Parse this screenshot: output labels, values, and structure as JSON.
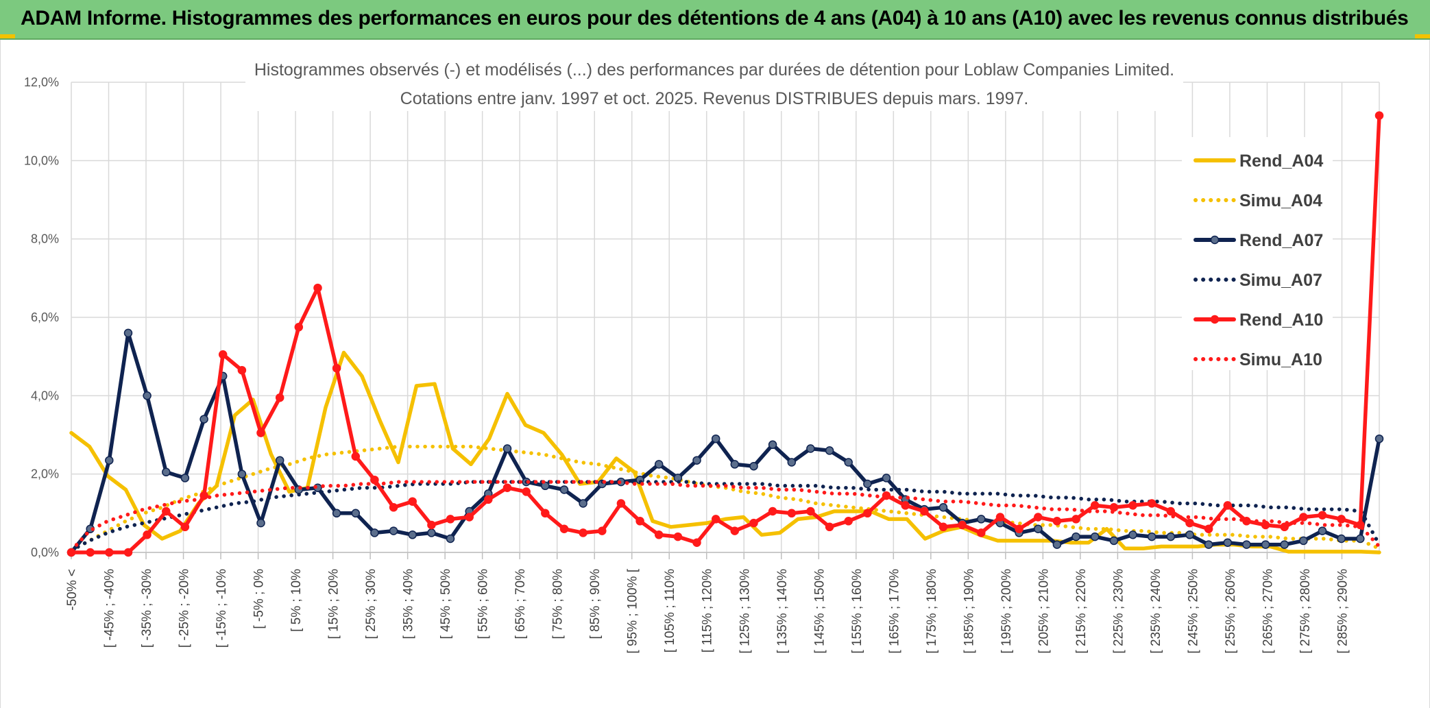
{
  "header": {
    "title": "ADAM Informe. Histogrammes des performances en euros pour des détentions de 4 ans (A04) à 10 ans (A10) avec les revenus connus distribués"
  },
  "chart_data": {
    "type": "line",
    "title": "Histogrammes observés (-) et modélisés (...) des performances par durées de détention pour Loblaw Companies Limited.",
    "subtitle": "Cotations entre janv. 1997 et oct. 2025. Revenus DISTRIBUES depuis mars. 1997.",
    "xlabel": "",
    "ylabel": "",
    "ylim": [
      0,
      12
    ],
    "y_ticks": [
      "0,0%",
      "2,0%",
      "4,0%",
      "6,0%",
      "8,0%",
      "10,0%",
      "12,0%"
    ],
    "grid": true,
    "legend_position": "right",
    "x_tick_labels": [
      "-50% <",
      "[ -45% ; -40%",
      "[ -35% ; -30%",
      "[ -25% ; -20%",
      "[ -15% ; -10%",
      "[ -5% ; 0%",
      "[ 5% ; 10%",
      "[ 15% ; 20%",
      "[ 25% ; 30%",
      "[ 35% ; 40%",
      "[ 45% ; 50%",
      "[ 55% ; 60%",
      "[ 65% ; 70%",
      "[ 75% ; 80%",
      "[ 85% ; 90%",
      "[ 95% ; 100% [",
      "[ 105% ; 110%",
      "[ 115% ; 120%",
      "[ 125% ; 130%",
      "[ 135% ; 140%",
      "[ 145% ; 150%",
      "[ 155% ; 160%",
      "[ 165% ; 170%",
      "[ 175% ; 180%",
      "[ 185% ; 190%",
      "[ 195% ; 200%",
      "[ 205% ; 210%",
      "[ 215% ; 220%",
      "[ 225% ; 230%",
      "[ 235% ; 240%",
      "[ 245% ; 250%",
      "[ 255% ; 260%",
      "[ 265% ; 270%",
      "[ 275% ; 280%",
      "[ 285% ; 290%"
    ],
    "series": [
      {
        "name": "Rend_A04",
        "style": "solid",
        "markers": false,
        "color": "#f5c000",
        "values": [
          3.05,
          2.7,
          1.95,
          1.6,
          0.7,
          0.35,
          0.55,
          1.25,
          1.7,
          3.5,
          3.9,
          2.5,
          1.55,
          1.65,
          3.7,
          5.1,
          4.5,
          3.35,
          2.3,
          4.25,
          4.3,
          2.65,
          2.25,
          2.9,
          4.05,
          3.25,
          3.05,
          2.5,
          1.75,
          1.8,
          2.4,
          2.05,
          0.8,
          0.65,
          0.7,
          0.75,
          0.85,
          0.9,
          0.45,
          0.5,
          0.85,
          0.9,
          1.05,
          1.05,
          1.05,
          0.85,
          0.85,
          0.35,
          0.55,
          0.65,
          0.45,
          0.3,
          0.3,
          0.3,
          0.3,
          0.25,
          0.25,
          0.6,
          0.1,
          0.1,
          0.15,
          0.15,
          0.15,
          0.2,
          0.2,
          0.15,
          0.15,
          0.02,
          0.02,
          0.02,
          0.02,
          0.02,
          0.0
        ]
      },
      {
        "name": "Simu_A04",
        "style": "dotted",
        "color": "#f5c000",
        "values": [
          0.05,
          0.3,
          0.55,
          0.8,
          1.0,
          1.15,
          1.35,
          1.5,
          1.7,
          1.85,
          2.0,
          2.15,
          2.25,
          2.4,
          2.5,
          2.55,
          2.6,
          2.65,
          2.7,
          2.7,
          2.7,
          2.7,
          2.7,
          2.65,
          2.6,
          2.55,
          2.5,
          2.4,
          2.3,
          2.25,
          2.15,
          2.05,
          1.95,
          1.9,
          1.8,
          1.7,
          1.65,
          1.55,
          1.5,
          1.4,
          1.35,
          1.25,
          1.2,
          1.15,
          1.1,
          1.05,
          1.0,
          0.95,
          0.9,
          0.85,
          0.8,
          0.8,
          0.75,
          0.7,
          0.7,
          0.65,
          0.6,
          0.6,
          0.55,
          0.55,
          0.5,
          0.5,
          0.45,
          0.45,
          0.45,
          0.4,
          0.4,
          0.35,
          0.35,
          0.35,
          0.3,
          0.3,
          0.1
        ]
      },
      {
        "name": "Rend_A07",
        "style": "solid",
        "markers": true,
        "color": "#0f2350",
        "values": [
          0.0,
          0.6,
          2.35,
          5.6,
          4.0,
          2.05,
          1.9,
          3.4,
          4.5,
          2.0,
          0.75,
          2.35,
          1.6,
          1.65,
          1.0,
          1.0,
          0.5,
          0.55,
          0.45,
          0.5,
          0.35,
          1.05,
          1.5,
          2.65,
          1.8,
          1.7,
          1.6,
          1.25,
          1.75,
          1.8,
          1.85,
          2.25,
          1.9,
          2.35,
          2.9,
          2.25,
          2.2,
          2.75,
          2.3,
          2.65,
          2.6,
          2.3,
          1.75,
          1.9,
          1.35,
          1.1,
          1.15,
          0.75,
          0.85,
          0.75,
          0.5,
          0.6,
          0.2,
          0.4,
          0.4,
          0.3,
          0.45,
          0.4,
          0.4,
          0.45,
          0.2,
          0.25,
          0.2,
          0.2,
          0.2,
          0.3,
          0.55,
          0.35,
          0.35,
          2.9
        ]
      },
      {
        "name": "Simu_A07",
        "style": "dotted",
        "color": "#0f2350",
        "values": [
          0.05,
          0.3,
          0.5,
          0.65,
          0.75,
          0.85,
          0.95,
          1.05,
          1.15,
          1.25,
          1.3,
          1.4,
          1.45,
          1.5,
          1.55,
          1.6,
          1.65,
          1.65,
          1.7,
          1.75,
          1.75,
          1.75,
          1.8,
          1.8,
          1.8,
          1.8,
          1.8,
          1.8,
          1.8,
          1.8,
          1.8,
          1.8,
          1.8,
          1.8,
          1.8,
          1.75,
          1.75,
          1.75,
          1.75,
          1.7,
          1.7,
          1.7,
          1.65,
          1.65,
          1.6,
          1.6,
          1.6,
          1.55,
          1.55,
          1.5,
          1.5,
          1.5,
          1.45,
          1.45,
          1.4,
          1.4,
          1.35,
          1.35,
          1.3,
          1.3,
          1.3,
          1.25,
          1.25,
          1.2,
          1.2,
          1.2,
          1.15,
          1.15,
          1.1,
          1.1,
          1.1,
          1.05,
          0.2
        ]
      },
      {
        "name": "Rend_A10",
        "style": "solid",
        "markers": true,
        "color": "#ff1a1a",
        "values": [
          0.0,
          0.0,
          0.0,
          0.0,
          0.45,
          1.05,
          0.65,
          1.45,
          5.05,
          4.65,
          3.05,
          3.95,
          5.75,
          6.75,
          4.7,
          2.45,
          1.85,
          1.15,
          1.3,
          0.7,
          0.85,
          0.9,
          1.35,
          1.65,
          1.55,
          1.0,
          0.6,
          0.5,
          0.55,
          1.25,
          0.8,
          0.45,
          0.4,
          0.25,
          0.85,
          0.55,
          0.75,
          1.05,
          1.0,
          1.05,
          0.65,
          0.8,
          1.0,
          1.45,
          1.2,
          1.05,
          0.65,
          0.7,
          0.5,
          0.9,
          0.6,
          0.9,
          0.8,
          0.85,
          1.2,
          1.15,
          1.2,
          1.25,
          1.05,
          0.75,
          0.6,
          1.2,
          0.8,
          0.7,
          0.65,
          0.9,
          0.95,
          0.85,
          0.7,
          11.15
        ]
      },
      {
        "name": "Simu_A10",
        "style": "dotted",
        "color": "#ff1a1a",
        "values": [
          0.05,
          0.55,
          0.8,
          0.95,
          1.1,
          1.2,
          1.3,
          1.35,
          1.45,
          1.5,
          1.55,
          1.6,
          1.65,
          1.65,
          1.7,
          1.7,
          1.75,
          1.75,
          1.8,
          1.8,
          1.8,
          1.8,
          1.8,
          1.8,
          1.8,
          1.8,
          1.8,
          1.8,
          1.8,
          1.8,
          1.8,
          1.75,
          1.75,
          1.75,
          1.7,
          1.7,
          1.7,
          1.65,
          1.65,
          1.6,
          1.6,
          1.55,
          1.5,
          1.5,
          1.45,
          1.4,
          1.4,
          1.35,
          1.3,
          1.3,
          1.25,
          1.2,
          1.2,
          1.15,
          1.1,
          1.1,
          1.05,
          1.05,
          1.0,
          0.95,
          0.95,
          0.9,
          0.9,
          0.85,
          0.85,
          0.8,
          0.8,
          0.75,
          0.75,
          0.7,
          0.7,
          0.65,
          0.15
        ]
      }
    ]
  }
}
